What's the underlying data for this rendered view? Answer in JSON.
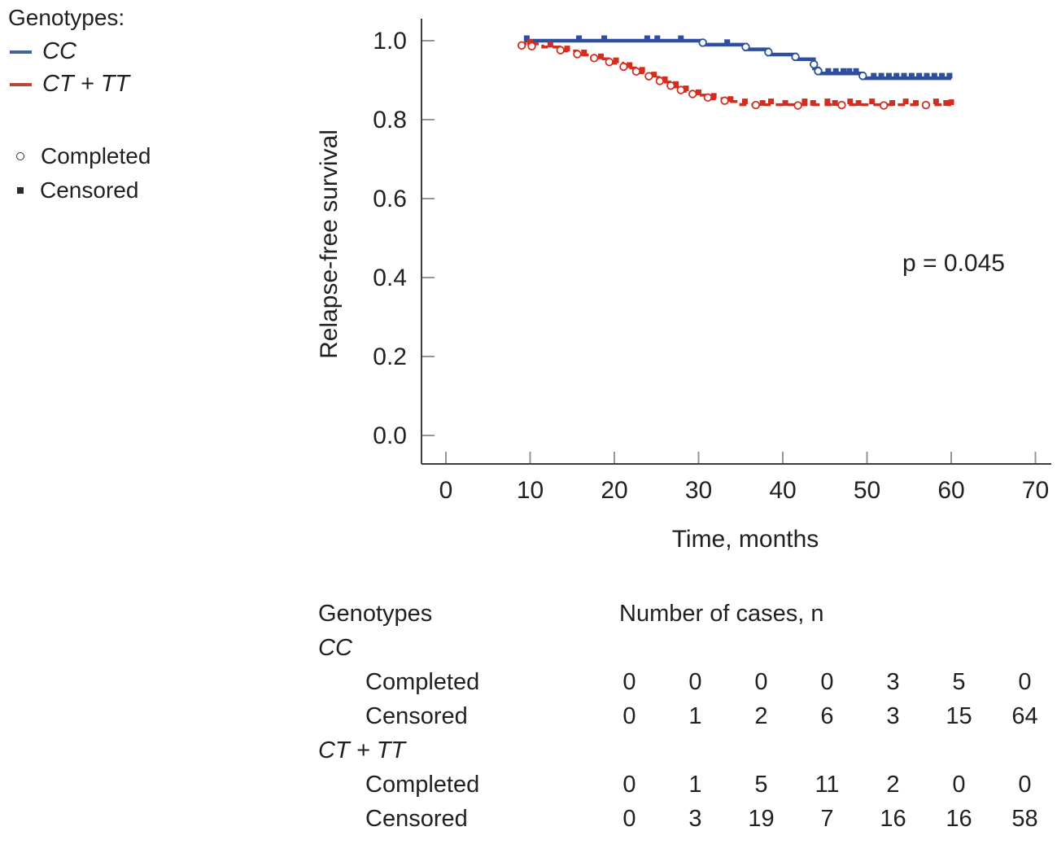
{
  "legend": {
    "title": "Genotypes:",
    "series": [
      {
        "label": "CC",
        "swatch_color": "#44609f"
      },
      {
        "label": "CT + TT",
        "swatch_color": "#b8453a"
      }
    ],
    "markers": [
      {
        "label": "Completed",
        "type": "open-circle"
      },
      {
        "label": "Censored",
        "type": "filled-square"
      }
    ]
  },
  "chart_data": {
    "type": "line",
    "subtype": "kaplan-meier-step",
    "xlabel": "Time, months",
    "ylabel": "Relapse-free survival",
    "xlim": [
      0,
      70
    ],
    "ylim": [
      0.0,
      1.0
    ],
    "xticks": [
      0,
      10,
      20,
      30,
      40,
      50,
      60,
      70
    ],
    "yticks": [
      {
        "label": "0.0",
        "value": 0.0
      },
      {
        "label": "0.2",
        "value": 0.2
      },
      {
        "label": "0.4",
        "value": 0.4
      },
      {
        "label": "0.6",
        "value": 0.6
      },
      {
        "label": "0.8",
        "value": 0.8
      },
      {
        "label": "1.0",
        "value": 1.0
      }
    ],
    "grid": false,
    "legend_position": "outside-top-left",
    "annotation": "p = 0.045",
    "axis_color": "#3d3d3d",
    "tick_color": "#969696",
    "series": [
      {
        "name": "CC",
        "color": "#2f4f9d",
        "line_style": "solid",
        "points": [
          [
            9.3,
            1.0
          ],
          [
            30.5,
            1.0
          ],
          [
            30.5,
            0.99
          ],
          [
            35.6,
            0.99
          ],
          [
            35.6,
            0.978
          ],
          [
            38.3,
            0.978
          ],
          [
            38.3,
            0.965
          ],
          [
            41.5,
            0.965
          ],
          [
            41.5,
            0.953
          ],
          [
            43.7,
            0.953
          ],
          [
            43.7,
            0.93
          ],
          [
            44.2,
            0.93
          ],
          [
            44.2,
            0.917
          ],
          [
            49.5,
            0.917
          ],
          [
            49.5,
            0.905
          ],
          [
            60.0,
            0.905
          ]
        ],
        "completed_markers": [
          [
            30.5,
            0.995
          ],
          [
            35.6,
            0.984
          ],
          [
            38.3,
            0.971
          ],
          [
            41.5,
            0.959
          ],
          [
            43.7,
            0.94
          ],
          [
            44.2,
            0.923
          ],
          [
            49.5,
            0.911
          ]
        ],
        "censored_markers": [
          [
            9.6,
            1.0
          ],
          [
            15.8,
            1.0
          ],
          [
            18.8,
            1.0
          ],
          [
            23.9,
            1.0
          ],
          [
            25.1,
            1.0
          ],
          [
            27.9,
            1.0
          ],
          [
            33.4,
            0.99
          ],
          [
            45.4,
            0.917
          ],
          [
            46.3,
            0.917
          ],
          [
            47.2,
            0.917
          ],
          [
            47.9,
            0.917
          ],
          [
            48.7,
            0.917
          ],
          [
            50.8,
            0.905
          ],
          [
            51.7,
            0.905
          ],
          [
            52.6,
            0.905
          ],
          [
            53.5,
            0.905
          ],
          [
            54.4,
            0.905
          ],
          [
            55.3,
            0.905
          ],
          [
            56.2,
            0.905
          ],
          [
            57.1,
            0.905
          ],
          [
            58.0,
            0.905
          ],
          [
            58.9,
            0.905
          ],
          [
            59.8,
            0.905
          ]
        ]
      },
      {
        "name": "CT + TT",
        "color": "#d42d1e",
        "line_style": "dashed",
        "points": [
          [
            8.7,
            0.992
          ],
          [
            11.5,
            0.992
          ],
          [
            11.5,
            0.984
          ],
          [
            13.5,
            0.984
          ],
          [
            13.5,
            0.974
          ],
          [
            15.5,
            0.974
          ],
          [
            15.5,
            0.964
          ],
          [
            17.5,
            0.964
          ],
          [
            17.5,
            0.954
          ],
          [
            19.3,
            0.954
          ],
          [
            19.3,
            0.943
          ],
          [
            21.0,
            0.943
          ],
          [
            21.0,
            0.931
          ],
          [
            22.5,
            0.931
          ],
          [
            22.5,
            0.919
          ],
          [
            24.0,
            0.919
          ],
          [
            24.0,
            0.907
          ],
          [
            25.3,
            0.907
          ],
          [
            25.3,
            0.895
          ],
          [
            26.6,
            0.895
          ],
          [
            26.6,
            0.883
          ],
          [
            27.8,
            0.883
          ],
          [
            27.8,
            0.872
          ],
          [
            29.2,
            0.872
          ],
          [
            29.2,
            0.862
          ],
          [
            31.0,
            0.862
          ],
          [
            31.0,
            0.853
          ],
          [
            33.0,
            0.853
          ],
          [
            33.0,
            0.846
          ],
          [
            35.0,
            0.846
          ],
          [
            35.0,
            0.838
          ],
          [
            60.0,
            0.838
          ]
        ],
        "completed_markers": [
          [
            9.0,
            0.988
          ],
          [
            10.2,
            0.986
          ],
          [
            13.6,
            0.976
          ],
          [
            15.6,
            0.966
          ],
          [
            17.6,
            0.956
          ],
          [
            19.4,
            0.946
          ],
          [
            21.1,
            0.934
          ],
          [
            22.6,
            0.922
          ],
          [
            24.1,
            0.91
          ],
          [
            25.4,
            0.898
          ],
          [
            26.7,
            0.886
          ],
          [
            27.9,
            0.875
          ],
          [
            29.3,
            0.865
          ],
          [
            31.1,
            0.856
          ],
          [
            33.1,
            0.848
          ],
          [
            36.8,
            0.837
          ],
          [
            41.8,
            0.836
          ],
          [
            47.0,
            0.837
          ],
          [
            52.0,
            0.836
          ],
          [
            57.0,
            0.837
          ]
        ],
        "censored_markers": [
          [
            10.0,
            0.99
          ],
          [
            12.4,
            0.984
          ],
          [
            14.4,
            0.974
          ],
          [
            16.4,
            0.964
          ],
          [
            18.4,
            0.954
          ],
          [
            20.2,
            0.944
          ],
          [
            21.8,
            0.932
          ],
          [
            23.3,
            0.92
          ],
          [
            24.7,
            0.908
          ],
          [
            26.0,
            0.896
          ],
          [
            27.3,
            0.884
          ],
          [
            28.5,
            0.873
          ],
          [
            30.0,
            0.863
          ],
          [
            31.8,
            0.854
          ],
          [
            33.8,
            0.846
          ],
          [
            35.5,
            0.84
          ],
          [
            37.6,
            0.836
          ],
          [
            38.6,
            0.84
          ],
          [
            40.3,
            0.836
          ],
          [
            42.6,
            0.84
          ],
          [
            43.6,
            0.836
          ],
          [
            45.3,
            0.84
          ],
          [
            46.2,
            0.836
          ],
          [
            48.0,
            0.84
          ],
          [
            49.0,
            0.836
          ],
          [
            50.6,
            0.84
          ],
          [
            53.0,
            0.836
          ],
          [
            54.6,
            0.84
          ],
          [
            55.8,
            0.836
          ],
          [
            58.2,
            0.84
          ],
          [
            59.4,
            0.836
          ],
          [
            60.0,
            0.838
          ]
        ]
      }
    ]
  },
  "table": {
    "header": {
      "genotypes": "Genotypes",
      "cases": "Number of cases, n"
    },
    "groups": [
      {
        "genotype": "CC",
        "rows": [
          {
            "label": "Completed",
            "values": [
              0,
              0,
              0,
              0,
              3,
              5,
              0
            ]
          },
          {
            "label": "Censored",
            "values": [
              0,
              1,
              2,
              6,
              3,
              15,
              64
            ]
          }
        ]
      },
      {
        "genotype": "CT + TT",
        "rows": [
          {
            "label": "Completed",
            "values": [
              0,
              1,
              5,
              11,
              2,
              0,
              0
            ]
          },
          {
            "label": "Censored",
            "values": [
              0,
              3,
              19,
              7,
              16,
              16,
              58
            ]
          }
        ]
      }
    ]
  }
}
